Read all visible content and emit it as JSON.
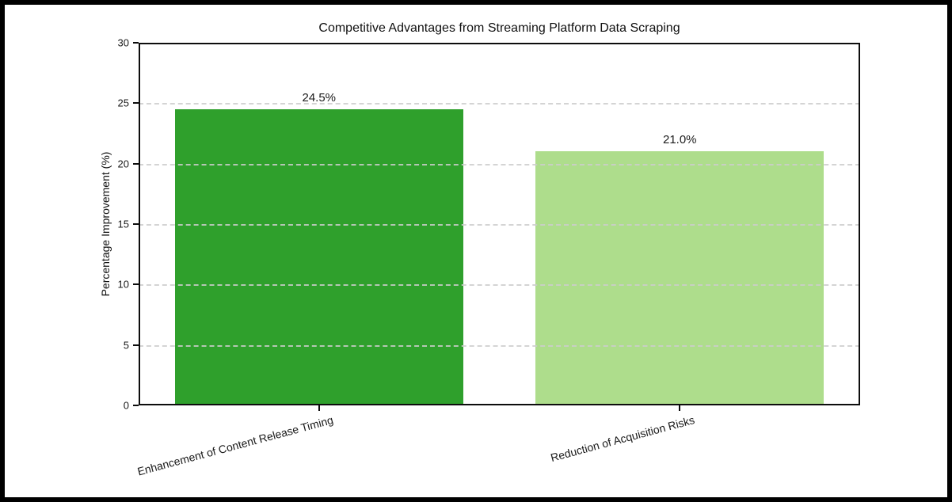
{
  "figure": {
    "background_color": "#ffffff",
    "frame_border_color": "#000000"
  },
  "chart_data": {
    "type": "bar",
    "title": "Competitive Advantages from Streaming Platform Data Scraping",
    "xlabel": "",
    "ylabel": "Percentage Improvement (%)",
    "categories": [
      "Enhancement of Content Release Timing",
      "Reduction of Acquisition Risks"
    ],
    "values": [
      24.5,
      21.0
    ],
    "value_labels": [
      "24.5%",
      "21.0%"
    ],
    "bar_colors": [
      "#2fa02c",
      "#aedd8c"
    ],
    "ylim": [
      0,
      30
    ],
    "yticks": [
      0,
      5,
      10,
      15,
      20,
      25,
      30
    ],
    "grid": "horizontal dashed gridlines drawn over bars",
    "gridline_color": "#cccccc",
    "legend": "none",
    "x_tick_label_rotation_deg": 15,
    "bar_width_fraction": 0.8
  }
}
